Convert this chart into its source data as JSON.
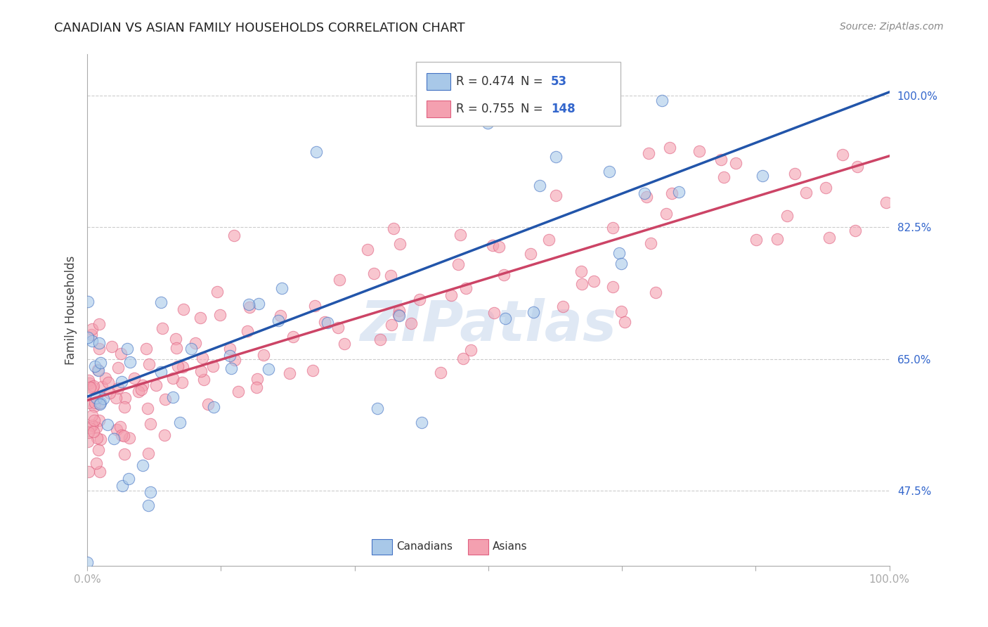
{
  "title": "CANADIAN VS ASIAN FAMILY HOUSEHOLDS CORRELATION CHART",
  "source": "Source: ZipAtlas.com",
  "ylabel": "Family Households",
  "watermark": "ZIPatlas",
  "blue_R": 0.474,
  "blue_N": 53,
  "pink_R": 0.755,
  "pink_N": 148,
  "blue_fill_color": "#a8c8e8",
  "blue_edge_color": "#4472c4",
  "pink_fill_color": "#f4a0b0",
  "pink_edge_color": "#e06080",
  "blue_line_color": "#2255aa",
  "pink_line_color": "#cc4466",
  "tick_label_color": "#3366cc",
  "title_color": "#222222",
  "source_color": "#888888",
  "grid_color": "#cccccc",
  "ylabel_color": "#444444",
  "xmin": 0.0,
  "xmax": 1.0,
  "ymin": 0.375,
  "ymax": 1.055,
  "ytick_vals": [
    0.475,
    0.65,
    0.825,
    1.0
  ],
  "ytick_labels": [
    "47.5%",
    "65.0%",
    "82.5%",
    "100.0%"
  ],
  "xtick_vals": [
    0.0,
    0.1667,
    0.3333,
    0.5,
    0.6667,
    0.8333,
    1.0
  ],
  "xtick_labels": [
    "0.0%",
    "",
    "",
    "",
    "",
    "",
    "100.0%"
  ],
  "blue_line_start_y": 0.6,
  "blue_line_end_y": 1.005,
  "pink_line_start_y": 0.595,
  "pink_line_end_y": 0.92
}
